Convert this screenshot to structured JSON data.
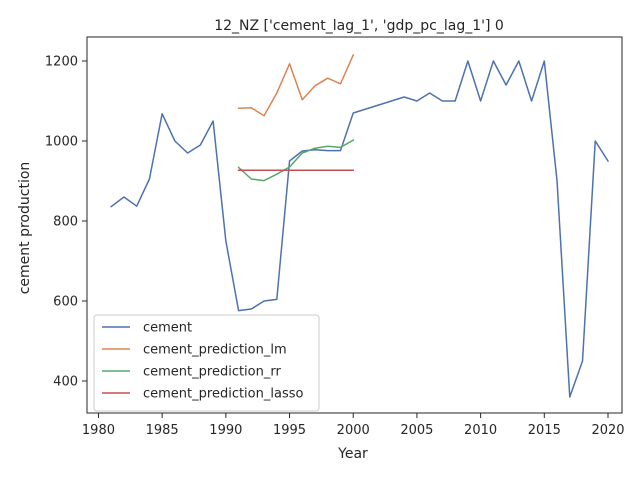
{
  "chart_data": {
    "type": "line",
    "title": "12_NZ ['cement_lag_1', 'gdp_pc_lag_1'] 0",
    "xlabel": "Year",
    "ylabel": "cement production",
    "xlim": [
      1979.1,
      2021.1
    ],
    "ylim": [
      320,
      1260
    ],
    "xticks": [
      1980,
      1985,
      1990,
      1995,
      2000,
      2005,
      2010,
      2015,
      2020
    ],
    "yticks": [
      400,
      600,
      800,
      1000,
      1200
    ],
    "grid": false,
    "legend_position": "lower-left",
    "series": [
      {
        "name": "cement",
        "color": "#4c72b0",
        "x": [
          1981,
          1982,
          1983,
          1984,
          1985,
          1986,
          1987,
          1988,
          1989,
          1990,
          1991,
          1992,
          1993,
          1994,
          1995,
          1996,
          1997,
          1998,
          1999,
          2000,
          2001,
          2002,
          2003,
          2004,
          2005,
          2006,
          2007,
          2008,
          2009,
          2010,
          2011,
          2012,
          2013,
          2014,
          2015,
          2016,
          2017,
          2018,
          2019,
          2020
        ],
        "y": [
          836,
          860,
          837,
          905,
          1068,
          1000,
          970,
          990,
          1050,
          750,
          576,
          580,
          600,
          604,
          950,
          975,
          978,
          976,
          976,
          1070,
          1080,
          1090,
          1100,
          1110,
          1100,
          1120,
          1100,
          1100,
          1200,
          1100,
          1200,
          1140,
          1200,
          1100,
          1200,
          900,
          360,
          450,
          1000,
          950
        ]
      },
      {
        "name": "cement_prediction_lm",
        "color": "#dd8452",
        "x": [
          1991,
          1992,
          1993,
          1994,
          1995,
          1996,
          1997,
          1998,
          1999,
          2000
        ],
        "y": [
          1082,
          1083,
          1063,
          1120,
          1193,
          1103,
          1138,
          1157,
          1143,
          1215
        ]
      },
      {
        "name": "cement_prediction_rr",
        "color": "#55a868",
        "x": [
          1991,
          1992,
          1993,
          1994,
          1995,
          1996,
          1997,
          1998,
          1999,
          2000
        ],
        "y": [
          934,
          905,
          901,
          917,
          935,
          970,
          982,
          987,
          984,
          1002
        ]
      },
      {
        "name": "cement_prediction_lasso",
        "color": "#c44e52",
        "x": [
          1991,
          1992,
          1993,
          1994,
          1995,
          1996,
          1997,
          1998,
          1999,
          2000
        ],
        "y": [
          927,
          927,
          927,
          927,
          927,
          927,
          927,
          927,
          927,
          927
        ]
      }
    ]
  }
}
